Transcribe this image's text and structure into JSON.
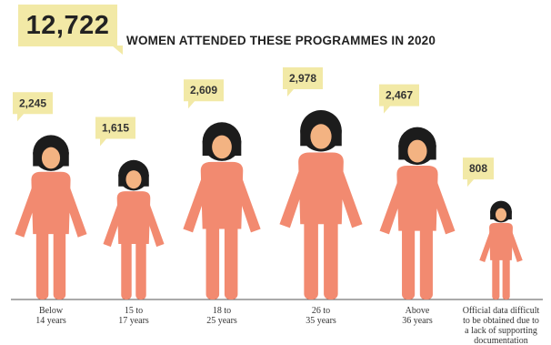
{
  "header": {
    "total": "12,722",
    "headline": "WOMEN ATTENDED THESE PROGRAMMES IN 2020"
  },
  "colors": {
    "figure_body": "#f28a70",
    "figure_head": "#1c1c1c",
    "face": "#f3b382",
    "callout": "#f2e9a6",
    "baseline": "#555555"
  },
  "chart_data": {
    "type": "bar",
    "title": "WOMEN ATTENDED THESE PROGRAMMES IN 2020",
    "total": 12722,
    "categories": [
      [
        "Below",
        "14 years"
      ],
      [
        "15 to",
        "17 years"
      ],
      [
        "18 to",
        "25 years"
      ],
      [
        "26 to",
        "35 years"
      ],
      [
        "Above",
        "36 years"
      ],
      [
        "Official data difficult",
        "to be obtained due to",
        "a lack of supporting",
        "documentation"
      ]
    ],
    "values": [
      2245,
      1615,
      2609,
      2978,
      2467,
      808
    ],
    "value_labels": [
      "2,245",
      "1,615",
      "2,609",
      "2,978",
      "2,467",
      "808"
    ]
  }
}
